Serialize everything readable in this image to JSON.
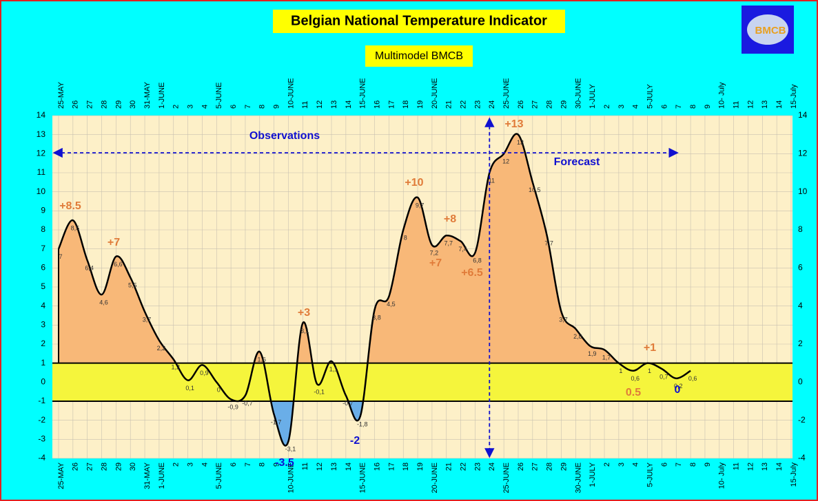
{
  "chart_data": {
    "type": "line",
    "title": "Belgian National Temperature Indicator",
    "subtitle": "Multimodel BMCB",
    "logo": "BMCB",
    "categories": [
      "25-MAY",
      "26",
      "27",
      "28",
      "29",
      "30",
      "31-MAY",
      "1-JUNE",
      "2",
      "3",
      "4",
      "5-JUNE",
      "6",
      "7",
      "8",
      "9",
      "10-JUNE",
      "11",
      "12",
      "13",
      "14",
      "15-JUNE",
      "16",
      "17",
      "18",
      "19",
      "20-JUNE",
      "21",
      "22",
      "23",
      "24",
      "25-JUNE",
      "26",
      "27",
      "28",
      "29",
      "30-JUNE",
      "1-JULY",
      "2",
      "3",
      "4",
      "5-JULY",
      "6",
      "7",
      "8",
      "9",
      "10- July",
      "11",
      "12",
      "13",
      "14",
      "15-July"
    ],
    "values": [
      7,
      8.5,
      6.4,
      4.6,
      6.6,
      5.5,
      3.7,
      2.2,
      1.2,
      0.1,
      0.9,
      0,
      -0.9,
      -0.7,
      1.6,
      -1.7,
      -3.1,
      3.1,
      -0.1,
      1.1,
      -0.7,
      -1.8,
      3.8,
      4.5,
      8,
      9.7,
      7.2,
      7.7,
      7.4,
      6.8,
      11,
      12,
      13,
      10.5,
      7.7,
      3.7,
      2.8,
      1.9,
      1.7,
      1,
      0.6,
      1,
      0.7,
      0.2,
      0.6,
      null,
      null,
      null,
      null,
      null,
      null,
      null
    ],
    "value_labels": [
      "7",
      "8,5",
      "6,4",
      "4,6",
      "6,6",
      "5,5",
      "3,7",
      "2,2",
      "1,2",
      "0,1",
      "0,9",
      "0",
      "-0,9",
      "-0,7",
      "1,6",
      "-1,7",
      "-3,1",
      "3,1",
      "-0,1",
      "1,1",
      "-0,7",
      "-1,8",
      "3,8",
      "4,5",
      "8",
      "9,7",
      "7,2",
      "7,7",
      "7,4",
      "6,8",
      "11",
      "12",
      "13",
      "10,5",
      "7,7",
      "3,7",
      "2,8",
      "1,9",
      "1,7",
      "1",
      "0,6",
      "1",
      "0,7",
      "0,2",
      "0,6",
      null,
      null,
      null,
      null,
      null,
      null,
      null
    ],
    "ylim": [
      -4,
      14
    ],
    "yticks": [
      -4,
      -3,
      -2,
      -1,
      0,
      1,
      2,
      3,
      4,
      5,
      6,
      7,
      8,
      9,
      10,
      11,
      12,
      13,
      14
    ],
    "y2lim": [
      -4,
      14
    ],
    "y2ticks": [
      -4,
      -2,
      0,
      2,
      4,
      6,
      8,
      10,
      12,
      14
    ],
    "band": [
      -1,
      1
    ],
    "grid": true,
    "color": "#000000",
    "above_color": "#f8b878",
    "below_color": "#6aaee8",
    "band_color": "#f5f53c",
    "annotations": [
      "+8.5",
      "+7",
      "+3",
      "-3.5",
      "-2",
      "+10",
      "+8",
      "+7",
      "+6.5",
      "+13",
      "+1",
      "0.5",
      "0",
      "Observations",
      "Forecast"
    ]
  }
}
